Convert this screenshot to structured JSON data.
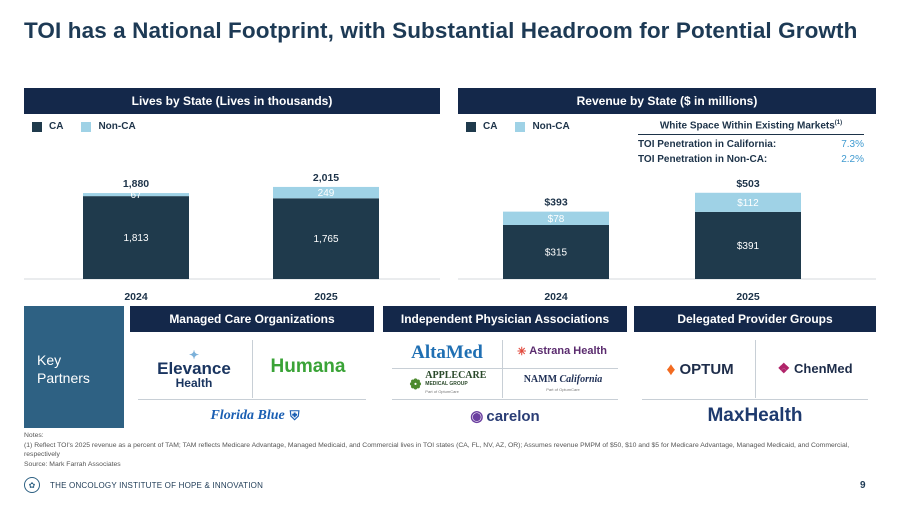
{
  "title": "TOI has a National Footprint, with Substantial Headroom for Potential Growth",
  "lives_chart": {
    "header": "Lives by State (Lives in thousands)",
    "legend": [
      "CA",
      "Non-CA"
    ]
  },
  "revenue_chart": {
    "header": "Revenue by State ($ in millions)",
    "legend": [
      "CA",
      "Non-CA"
    ]
  },
  "white_space": {
    "title": "White Space Within Existing Markets",
    "footnote_mark": "(1)",
    "rows": [
      {
        "label": "TOI Penetration in California:",
        "value": "7.3%"
      },
      {
        "label": "TOI Penetration in Non-CA:",
        "value": "2.2%"
      }
    ]
  },
  "chart_data": [
    {
      "type": "bar",
      "stacked": true,
      "title": "Lives by State (Lives in thousands)",
      "categories": [
        "2024",
        "2025"
      ],
      "series": [
        {
          "name": "CA",
          "values": [
            1813,
            1765
          ],
          "labels": [
            "1,813",
            "1,765"
          ]
        },
        {
          "name": "Non-CA",
          "values": [
            67,
            249
          ],
          "labels": [
            "67",
            "249"
          ]
        }
      ],
      "totals": [
        "1,880",
        "2,015"
      ],
      "ylim": [
        0,
        2100
      ],
      "colors": {
        "CA": "#1f3a4c",
        "Non-CA": "#9fd2e6"
      }
    },
    {
      "type": "bar",
      "stacked": true,
      "title": "Revenue by State ($ in millions)",
      "categories": [
        "2024",
        "2025"
      ],
      "series": [
        {
          "name": "CA",
          "values": [
            315,
            391
          ],
          "labels": [
            "$315",
            "$391"
          ]
        },
        {
          "name": "Non-CA",
          "values": [
            78,
            112
          ],
          "labels": [
            "$78",
            "$112"
          ]
        }
      ],
      "totals": [
        "$393",
        "$503"
      ],
      "ylim": [
        0,
        560
      ],
      "colors": {
        "CA": "#1f3a4c",
        "Non-CA": "#9fd2e6"
      }
    }
  ],
  "partners": {
    "key_label": "Key Partners",
    "groups": [
      {
        "header": "Managed Care Organizations",
        "logos": [
          "Elevance Health",
          "Humana",
          "Florida Blue"
        ]
      },
      {
        "header": "Independent Physician Associations",
        "logos": [
          "AltaMed",
          "Astrana Health",
          "AppleCare Medical Group",
          "NAMM California",
          "carelon"
        ]
      },
      {
        "header": "Delegated Provider Groups",
        "logos": [
          "OPTUM",
          "ChenMed",
          "MaxHealth"
        ]
      }
    ],
    "logo_sub": {
      "elevance": [
        "Elevance",
        "Health"
      ],
      "applecare": [
        "APPLECARE",
        "MEDICAL GROUP",
        "Part of OptumCare"
      ],
      "namm": [
        "NAMM",
        "California",
        "Part of OptumCare"
      ]
    }
  },
  "notes": {
    "heading": "Notes:",
    "line1": "(1) Reflect TOI's 2025 revenue as a percent of TAM; TAM reflects Medicare Advantage, Managed Medicaid, and Commercial lives in TOI states (CA, FL, NV, AZ, OR); Assumes revenue PMPM of $50, $10 and $5 for Medicare Advantage, Managed Medicaid, and Commercial, respectively",
    "source": "Source: Mark Farrah Associates"
  },
  "footer": {
    "company": "THE ONCOLOGY INSTITUTE OF HOPE & INNOVATION",
    "page": "9"
  }
}
